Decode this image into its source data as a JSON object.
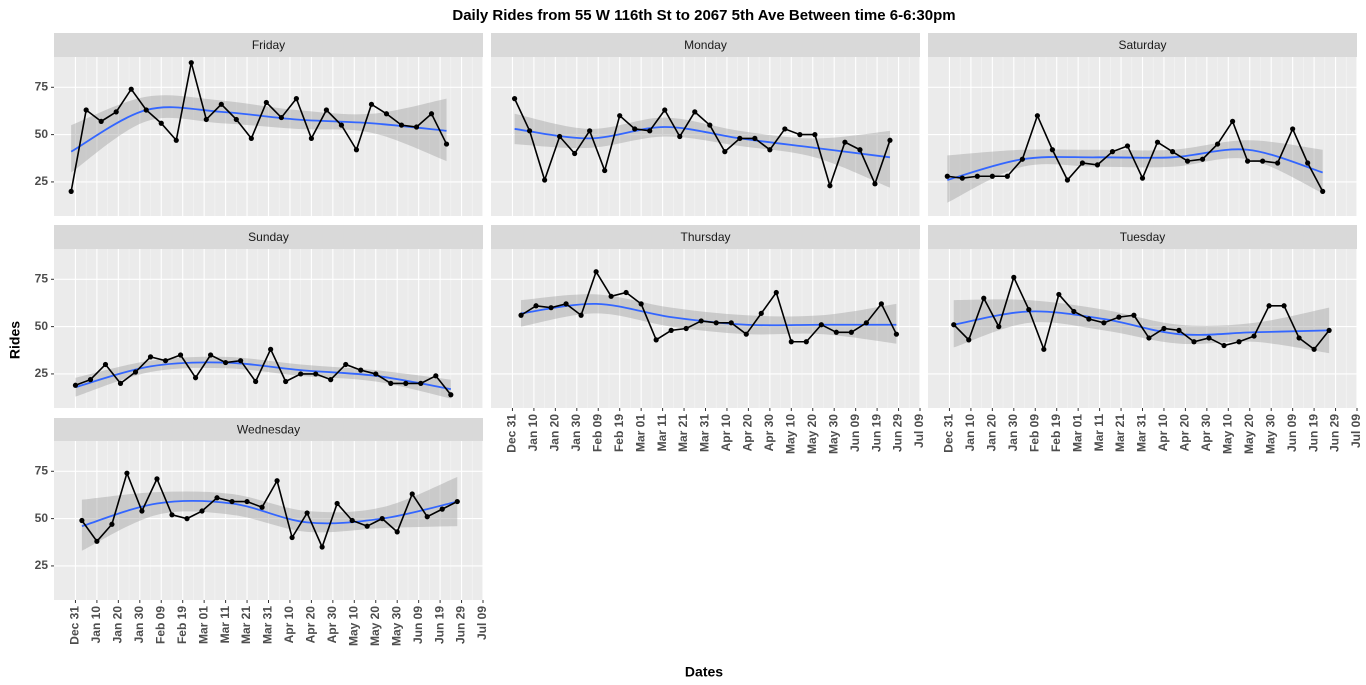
{
  "chart_data": {
    "type": "line",
    "title": "Daily Rides from 55 W 116th St to 2067 5th Ave Between time 6-6:30pm",
    "x_label": "Dates",
    "y_label": "Rides",
    "color": "#000000",
    "smooth_color": "#3366FF",
    "ribbon_color": "#999999",
    "grid": true,
    "xlim": [
      "Dec 21",
      "Jul 09"
    ],
    "xticks": [
      "Dec 31",
      "Jan 10",
      "Jan 20",
      "Jan 30",
      "Feb 09",
      "Feb 19",
      "Mar 01",
      "Mar 11",
      "Mar 21",
      "Mar 31",
      "Apr 10",
      "Apr 20",
      "Apr 30",
      "May 10",
      "May 20",
      "May 30",
      "Jun 09",
      "Jun 19",
      "Jun 29",
      "Jul 09"
    ],
    "ylim": [
      7,
      91
    ],
    "yticks": [
      25,
      50,
      75
    ],
    "facets": [
      {
        "name": "Friday",
        "x": [
          "Dec 29",
          "Jan 05",
          "Jan 12",
          "Jan 19",
          "Jan 26",
          "Feb 02",
          "Feb 09",
          "Feb 16",
          "Feb 23",
          "Mar 02",
          "Mar 09",
          "Mar 16",
          "Mar 23",
          "Mar 30",
          "Apr 06",
          "Apr 13",
          "Apr 20",
          "Apr 27",
          "May 04",
          "May 11",
          "May 18",
          "May 25",
          "Jun 01",
          "Jun 08",
          "Jun 15",
          "Jun 22"
        ],
        "values": [
          20,
          63,
          57,
          62,
          74,
          63,
          56,
          47,
          88,
          58,
          66,
          58,
          48,
          67,
          59,
          69,
          48,
          63,
          55,
          42,
          66,
          61,
          55,
          54,
          61,
          45
        ],
        "smooth": {
          "x": [
            "Dec 29",
            "Feb 02",
            "Mar 09",
            "Apr 13",
            "May 18",
            "Jun 22"
          ],
          "fit": [
            41,
            63,
            62,
            58,
            56,
            52
          ],
          "lower": [
            30,
            57,
            56,
            53,
            51,
            36
          ],
          "upper": [
            55,
            70,
            68,
            63,
            61,
            69
          ]
        }
      },
      {
        "name": "Monday",
        "x": [
          "Jan 01",
          "Jan 08",
          "Jan 15",
          "Jan 22",
          "Jan 29",
          "Feb 05",
          "Feb 12",
          "Feb 19",
          "Feb 26",
          "Mar 05",
          "Mar 12",
          "Mar 19",
          "Mar 26",
          "Apr 02",
          "Apr 09",
          "Apr 16",
          "Apr 23",
          "Apr 30",
          "May 07",
          "May 14",
          "May 21",
          "May 28",
          "Jun 04",
          "Jun 11",
          "Jun 18",
          "Jun 25"
        ],
        "values": [
          69,
          52,
          26,
          49,
          40,
          52,
          31,
          60,
          53,
          52,
          63,
          49,
          62,
          55,
          41,
          48,
          48,
          42,
          53,
          50,
          50,
          23,
          46,
          42,
          24,
          47
        ],
        "smooth": {
          "x": [
            "Jan 01",
            "Feb 05",
            "Mar 12",
            "Apr 16",
            "May 21",
            "Jun 25"
          ],
          "fit": [
            53,
            48,
            54,
            48,
            43,
            38
          ],
          "lower": [
            45,
            43,
            49,
            44,
            38,
            22
          ],
          "upper": [
            61,
            53,
            59,
            52,
            48,
            52
          ]
        }
      },
      {
        "name": "Saturday",
        "x": [
          "Dec 30",
          "Jan 06",
          "Jan 13",
          "Jan 20",
          "Jan 27",
          "Feb 03",
          "Feb 10",
          "Feb 17",
          "Feb 24",
          "Mar 03",
          "Mar 10",
          "Mar 17",
          "Mar 24",
          "Mar 31",
          "Apr 07",
          "Apr 14",
          "Apr 21",
          "Apr 28",
          "May 05",
          "May 12",
          "May 19",
          "May 26",
          "Jun 02",
          "Jun 09",
          "Jun 16",
          "Jun 23"
        ],
        "values": [
          28,
          27,
          28,
          28,
          28,
          37,
          60,
          42,
          26,
          35,
          34,
          41,
          44,
          27,
          46,
          41,
          36,
          37,
          45,
          57,
          36,
          36,
          35,
          53,
          35,
          20
        ],
        "smooth": {
          "x": [
            "Dec 30",
            "Feb 03",
            "Mar 10",
            "Apr 14",
            "May 19",
            "Jun 23"
          ],
          "fit": [
            26,
            37,
            38,
            38,
            42,
            30
          ],
          "lower": [
            14,
            33,
            33,
            33,
            37,
            19
          ],
          "upper": [
            39,
            42,
            42,
            42,
            47,
            42
          ]
        }
      },
      {
        "name": "Sunday",
        "x": [
          "Dec 31",
          "Jan 07",
          "Jan 14",
          "Jan 21",
          "Jan 28",
          "Feb 04",
          "Feb 11",
          "Feb 18",
          "Feb 25",
          "Mar 04",
          "Mar 11",
          "Mar 18",
          "Mar 25",
          "Apr 01",
          "Apr 08",
          "Apr 15",
          "Apr 22",
          "Apr 29",
          "May 06",
          "May 13",
          "May 20",
          "May 27",
          "Jun 03",
          "Jun 10",
          "Jun 17",
          "Jun 24"
        ],
        "values": [
          19,
          22,
          30,
          20,
          26,
          34,
          32,
          35,
          23,
          35,
          31,
          32,
          21,
          38,
          21,
          25,
          25,
          22,
          30,
          27,
          25,
          20,
          20,
          20,
          24,
          14
        ],
        "smooth": {
          "x": [
            "Dec 31",
            "Feb 04",
            "Mar 11",
            "Apr 15",
            "May 20",
            "Jun 24"
          ],
          "fit": [
            18,
            29,
            31,
            27,
            24,
            17
          ],
          "lower": [
            13,
            26,
            28,
            24,
            21,
            12
          ],
          "upper": [
            23,
            32,
            34,
            30,
            27,
            22
          ]
        }
      },
      {
        "name": "Thursday",
        "x": [
          "Jan 04",
          "Jan 11",
          "Jan 18",
          "Jan 25",
          "Feb 01",
          "Feb 08",
          "Feb 15",
          "Feb 22",
          "Mar 01",
          "Mar 08",
          "Mar 15",
          "Mar 22",
          "Mar 29",
          "Apr 05",
          "Apr 12",
          "Apr 19",
          "Apr 26",
          "May 03",
          "May 10",
          "May 17",
          "May 24",
          "May 31",
          "Jun 07",
          "Jun 14",
          "Jun 21",
          "Jun 28"
        ],
        "values": [
          56,
          61,
          60,
          62,
          56,
          79,
          66,
          68,
          62,
          43,
          48,
          49,
          53,
          52,
          52,
          46,
          57,
          68,
          42,
          42,
          51,
          47,
          47,
          52,
          62,
          46
        ],
        "smooth": {
          "x": [
            "Jan 04",
            "Feb 08",
            "Mar 15",
            "Apr 19",
            "May 24",
            "Jun 28"
          ],
          "fit": [
            57,
            62,
            55,
            51,
            51,
            51
          ],
          "lower": [
            50,
            57,
            50,
            46,
            46,
            41
          ],
          "upper": [
            64,
            67,
            60,
            56,
            56,
            62
          ]
        }
      },
      {
        "name": "Tuesday",
        "x": [
          "Jan 02",
          "Jan 09",
          "Jan 16",
          "Jan 23",
          "Jan 30",
          "Feb 06",
          "Feb 13",
          "Feb 20",
          "Feb 27",
          "Mar 06",
          "Mar 13",
          "Mar 20",
          "Mar 27",
          "Apr 03",
          "Apr 10",
          "Apr 17",
          "Apr 24",
          "May 01",
          "May 08",
          "May 15",
          "May 22",
          "May 29",
          "Jun 05",
          "Jun 12",
          "Jun 19",
          "Jun 26"
        ],
        "values": [
          51,
          43,
          65,
          50,
          76,
          59,
          38,
          67,
          58,
          54,
          52,
          55,
          56,
          44,
          49,
          48,
          42,
          44,
          40,
          42,
          45,
          61,
          61,
          44,
          38,
          48
        ],
        "smooth": {
          "x": [
            "Jan 02",
            "Feb 06",
            "Mar 13",
            "Apr 17",
            "May 22",
            "Jun 26"
          ],
          "fit": [
            51,
            58,
            54,
            46,
            47,
            48
          ],
          "lower": [
            39,
            52,
            48,
            41,
            42,
            36
          ],
          "upper": [
            64,
            64,
            59,
            51,
            52,
            60
          ]
        }
      },
      {
        "name": "Wednesday",
        "x": [
          "Jan 03",
          "Jan 10",
          "Jan 17",
          "Jan 24",
          "Jan 31",
          "Feb 07",
          "Feb 14",
          "Feb 21",
          "Feb 28",
          "Mar 07",
          "Mar 14",
          "Mar 21",
          "Mar 28",
          "Apr 04",
          "Apr 11",
          "Apr 18",
          "Apr 25",
          "May 02",
          "May 09",
          "May 16",
          "May 23",
          "May 30",
          "Jun 06",
          "Jun 13",
          "Jun 20",
          "Jun 27"
        ],
        "values": [
          49,
          38,
          47,
          74,
          54,
          71,
          52,
          50,
          54,
          61,
          59,
          59,
          56,
          70,
          40,
          53,
          35,
          58,
          49,
          46,
          50,
          43,
          63,
          51,
          55,
          59
        ],
        "smooth": {
          "x": [
            "Jan 03",
            "Feb 07",
            "Mar 14",
            "Apr 18",
            "May 23",
            "Jun 27"
          ],
          "fit": [
            46,
            58,
            58,
            48,
            50,
            59
          ],
          "lower": [
            33,
            52,
            52,
            43,
            45,
            46
          ],
          "upper": [
            60,
            64,
            63,
            54,
            56,
            72
          ]
        }
      }
    ]
  }
}
